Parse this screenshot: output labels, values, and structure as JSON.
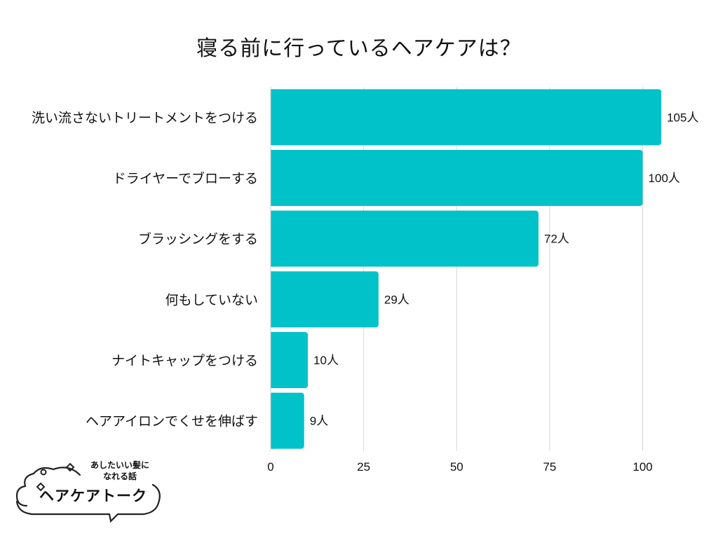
{
  "chart_data": {
    "type": "bar",
    "orientation": "horizontal",
    "title": "寝る前に行っているヘアケアは？",
    "categories": [
      "洗い流さないトリートメントをつける",
      "ドライヤーでブローする",
      "ブラッシングをする",
      "何もしていない",
      "ナイトキャップをつける",
      "ヘアアイロンでくせを伸ばす"
    ],
    "values": [
      105,
      100,
      72,
      29,
      10,
      9
    ],
    "value_labels": [
      "105人",
      "100人",
      "72人",
      "29人",
      "10人",
      "9人"
    ],
    "xlim": [
      0,
      108
    ],
    "xticks": [
      0,
      25,
      50,
      75,
      100
    ],
    "xtick_labels": [
      "0",
      "25",
      "50",
      "75",
      "100"
    ],
    "grid": true,
    "bar_color": "#00c2c8",
    "grid_color": "#d6d6d6"
  },
  "logo": {
    "subtitle_line1": "あしたいい髪に",
    "subtitle_line2": "なれる話",
    "name": "ヘアケアトーク"
  }
}
